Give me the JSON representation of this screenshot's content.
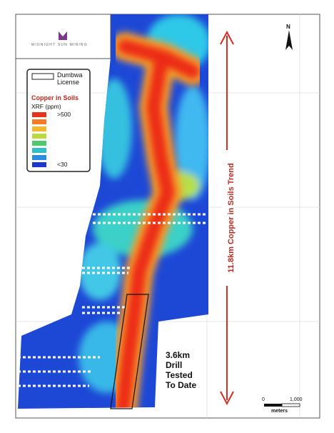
{
  "logo_text": "MIDNIGHT SUN MINING",
  "legend": {
    "license_label": "Dumbwa License",
    "title": "Copper in Soils",
    "subtitle": "XRF (ppm)",
    "max_label": ">500",
    "min_label": "<30"
  },
  "trend_label": "11.8km Copper in Soils Trend",
  "drill_label": "3.6km Drill Tested To Date",
  "north_label": "N",
  "scale_bar": {
    "labels": [
      "0",
      "1,000"
    ],
    "unit": "meters"
  }
}
